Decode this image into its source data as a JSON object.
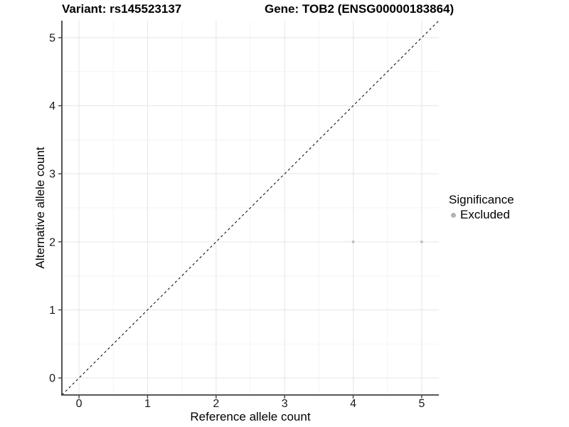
{
  "titles": {
    "variant": "Variant: rs145523137",
    "gene": "Gene: TOB2 (ENSG00000183864)"
  },
  "chart_data": {
    "type": "scatter",
    "title_left": "Variant: rs145523137",
    "title_right": "Gene: TOB2 (ENSG00000183864)",
    "xlabel": "Reference allele count",
    "ylabel": "Alternative allele count",
    "xlim": [
      -0.25,
      5.25
    ],
    "ylim": [
      -0.25,
      5.25
    ],
    "xticks": [
      0,
      1,
      2,
      3,
      4,
      5
    ],
    "yticks": [
      0,
      1,
      2,
      3,
      4,
      5
    ],
    "x_minor_ticks": [
      0.5,
      1.5,
      2.5,
      3.5,
      4.5
    ],
    "y_minor_ticks": [
      0.5,
      1.5,
      2.5,
      3.5,
      4.5
    ],
    "grid": "major+minor",
    "series": [
      {
        "name": "Excluded",
        "color": "#bdbdbd",
        "points": [
          {
            "x": 4,
            "y": 2
          },
          {
            "x": 5,
            "y": 2
          }
        ]
      }
    ],
    "reference_line": {
      "style": "dashed",
      "color": "#000000",
      "from": [
        -0.25,
        -0.25
      ],
      "to": [
        5.25,
        5.25
      ]
    },
    "legend": {
      "title": "Significance",
      "position": "right",
      "items": [
        {
          "label": "Excluded",
          "color": "#b3b3b3",
          "marker": "circle"
        }
      ]
    }
  },
  "colors": {
    "point": "#bdbdbd",
    "legend_marker": "#b3b3b3",
    "grid_major": "#e8e8e8",
    "grid_minor": "#f3f3f3",
    "axis_line": "#404040",
    "tick_mark": "#404040",
    "text": "#1a1a1a",
    "background": "#ffffff"
  }
}
